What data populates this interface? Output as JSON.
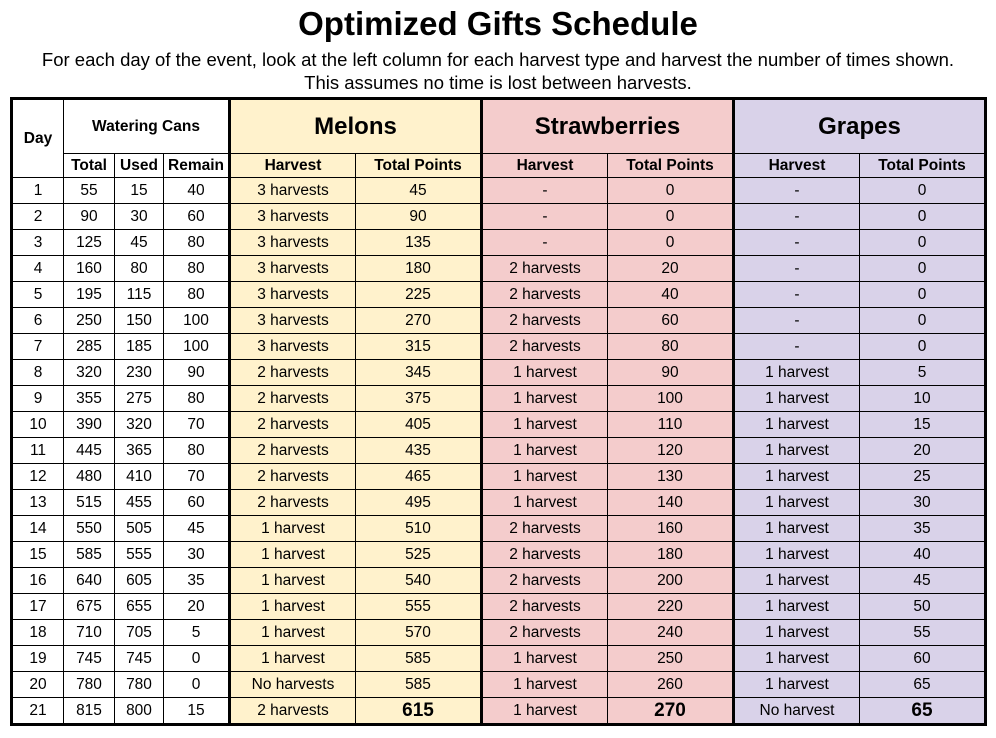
{
  "title": "Optimized Gifts Schedule",
  "subtitle": "For each day of the event, look at the left column for each harvest type and harvest the number of times shown. This assumes no time is lost between harvests.",
  "headers": {
    "day": "Day",
    "watering_cans": "Watering Cans",
    "melons": "Melons",
    "strawberries": "Strawberries",
    "grapes": "Grapes",
    "total": "Total",
    "used": "Used",
    "remain": "Remain",
    "harvest": "Harvest",
    "total_points": "Total Points"
  },
  "colors": {
    "melons": "#fff2cc",
    "strawberries": "#f4cccc",
    "grapes": "#d9d2e9"
  },
  "rows": [
    [
      "1",
      "55",
      "15",
      "40",
      "3 harvests",
      "45",
      "-",
      "0",
      "-",
      "0"
    ],
    [
      "2",
      "90",
      "30",
      "60",
      "3 harvests",
      "90",
      "-",
      "0",
      "-",
      "0"
    ],
    [
      "3",
      "125",
      "45",
      "80",
      "3 harvests",
      "135",
      "-",
      "0",
      "-",
      "0"
    ],
    [
      "4",
      "160",
      "80",
      "80",
      "3 harvests",
      "180",
      "2 harvests",
      "20",
      "-",
      "0"
    ],
    [
      "5",
      "195",
      "115",
      "80",
      "3 harvests",
      "225",
      "2 harvests",
      "40",
      "-",
      "0"
    ],
    [
      "6",
      "250",
      "150",
      "100",
      "3 harvests",
      "270",
      "2 harvests",
      "60",
      "-",
      "0"
    ],
    [
      "7",
      "285",
      "185",
      "100",
      "3 harvests",
      "315",
      "2 harvests",
      "80",
      "-",
      "0"
    ],
    [
      "8",
      "320",
      "230",
      "90",
      "2 harvests",
      "345",
      "1 harvest",
      "90",
      "1 harvest",
      "5"
    ],
    [
      "9",
      "355",
      "275",
      "80",
      "2 harvests",
      "375",
      "1 harvest",
      "100",
      "1 harvest",
      "10"
    ],
    [
      "10",
      "390",
      "320",
      "70",
      "2 harvests",
      "405",
      "1 harvest",
      "110",
      "1 harvest",
      "15"
    ],
    [
      "11",
      "445",
      "365",
      "80",
      "2 harvests",
      "435",
      "1 harvest",
      "120",
      "1 harvest",
      "20"
    ],
    [
      "12",
      "480",
      "410",
      "70",
      "2 harvests",
      "465",
      "1 harvest",
      "130",
      "1 harvest",
      "25"
    ],
    [
      "13",
      "515",
      "455",
      "60",
      "2 harvests",
      "495",
      "1 harvest",
      "140",
      "1 harvest",
      "30"
    ],
    [
      "14",
      "550",
      "505",
      "45",
      "1 harvest",
      "510",
      "2 harvests",
      "160",
      "1 harvest",
      "35"
    ],
    [
      "15",
      "585",
      "555",
      "30",
      "1 harvest",
      "525",
      "2 harvests",
      "180",
      "1 harvest",
      "40"
    ],
    [
      "16",
      "640",
      "605",
      "35",
      "1 harvest",
      "540",
      "2 harvests",
      "200",
      "1 harvest",
      "45"
    ],
    [
      "17",
      "675",
      "655",
      "20",
      "1 harvest",
      "555",
      "2 harvests",
      "220",
      "1 harvest",
      "50"
    ],
    [
      "18",
      "710",
      "705",
      "5",
      "1 harvest",
      "570",
      "2 harvests",
      "240",
      "1 harvest",
      "55"
    ],
    [
      "19",
      "745",
      "745",
      "0",
      "1 harvest",
      "585",
      "1 harvest",
      "250",
      "1 harvest",
      "60"
    ],
    [
      "20",
      "780",
      "780",
      "0",
      "No harvests",
      "585",
      "1 harvest",
      "260",
      "1 harvest",
      "65"
    ],
    [
      "21",
      "815",
      "800",
      "15",
      "2 harvests",
      "615",
      "1 harvest",
      "270",
      "No harvest",
      "65"
    ]
  ]
}
